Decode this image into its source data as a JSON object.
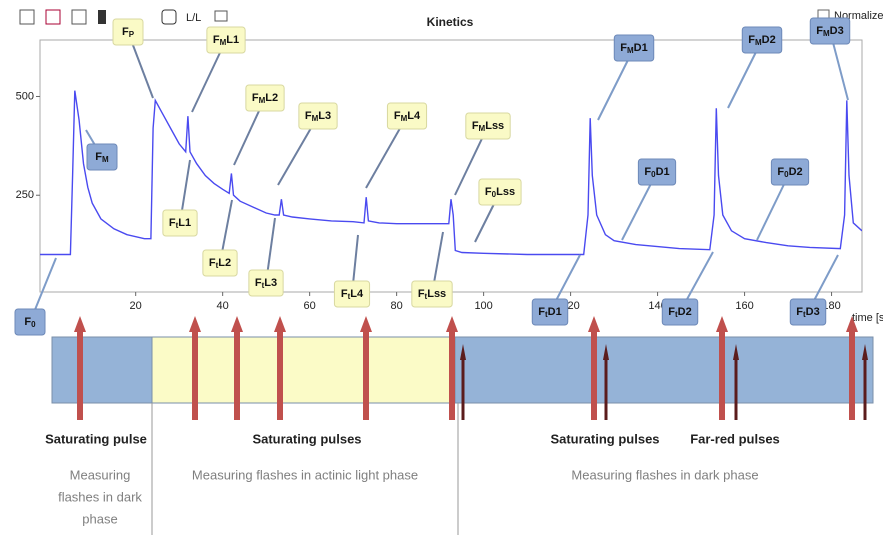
{
  "chart_data": {
    "type": "line",
    "title": "Kinetics",
    "x_label": "time [s",
    "x": [
      -2,
      5,
      5.5,
      6,
      7,
      8,
      9,
      10,
      12,
      15,
      18,
      22,
      23.5,
      24,
      24.5,
      26,
      28,
      30,
      31.5,
      32,
      32.5,
      34,
      36,
      38,
      40,
      41.5,
      42,
      42.5,
      44,
      47,
      50,
      52,
      53,
      53.5,
      54,
      56,
      60,
      65,
      70,
      72.5,
      73,
      73.5,
      76,
      80,
      85,
      92,
      92.5,
      93,
      93.5,
      95,
      100,
      110,
      123,
      124,
      124.5,
      125,
      126,
      128,
      130,
      135,
      140,
      145,
      152,
      153,
      153.5,
      154,
      155,
      157,
      160,
      165,
      170,
      175,
      182,
      183,
      183.5,
      184,
      185,
      187
    ],
    "series": [
      {
        "color": "#4a4af0",
        "values": [
          100,
          100,
          300,
          515,
          440,
          330,
          270,
          230,
          190,
          165,
          150,
          140,
          140,
          420,
          490,
          460,
          420,
          380,
          360,
          450,
          360,
          330,
          300,
          280,
          265,
          255,
          305,
          250,
          235,
          220,
          205,
          200,
          200,
          240,
          200,
          195,
          190,
          185,
          183,
          180,
          245,
          185,
          180,
          178,
          178,
          178,
          240,
          200,
          110,
          105,
          103,
          100,
          100,
          200,
          445,
          300,
          200,
          150,
          135,
          125,
          120,
          115,
          112,
          200,
          470,
          300,
          200,
          160,
          140,
          130,
          122,
          118,
          115,
          200,
          490,
          300,
          180,
          160
        ]
      }
    ],
    "xlim": [
      -2,
      187
    ],
    "ylim": [
      5,
      643
    ],
    "xticks": [
      20,
      40,
      60,
      80,
      100,
      120,
      140,
      160,
      180
    ],
    "yticks": [
      250,
      500
    ]
  },
  "toolbar": {
    "scale_button": "L/L",
    "normalize": "Normalize"
  },
  "annotations": [
    {
      "base": "F",
      "sub": "0",
      "rest": ""
    },
    {
      "base": "F",
      "sub": "M",
      "rest": ""
    },
    {
      "base": "F",
      "sub": "P",
      "rest": ""
    },
    {
      "base": "F",
      "sub": "M",
      "rest": "L1"
    },
    {
      "base": "F",
      "sub": "t",
      "rest": "L1"
    },
    {
      "base": "F",
      "sub": "M",
      "rest": "L2"
    },
    {
      "base": "F",
      "sub": "t",
      "rest": "L2"
    },
    {
      "base": "F",
      "sub": "M",
      "rest": "L3"
    },
    {
      "base": "F",
      "sub": "t",
      "rest": "L3"
    },
    {
      "base": "F",
      "sub": "M",
      "rest": "L4"
    },
    {
      "base": "F",
      "sub": "t",
      "rest": "L4"
    },
    {
      "base": "F",
      "sub": "M",
      "rest": "Lss"
    },
    {
      "base": "F",
      "sub": "0",
      "rest": "Lss"
    },
    {
      "base": "F",
      "sub": "t",
      "rest": "Lss"
    },
    {
      "base": "F",
      "sub": "M",
      "rest": "D1"
    },
    {
      "base": "F",
      "sub": "0",
      "rest": "D1"
    },
    {
      "base": "F",
      "sub": "t",
      "rest": "D1"
    },
    {
      "base": "F",
      "sub": "M",
      "rest": "D2"
    },
    {
      "base": "F",
      "sub": "0",
      "rest": "D2"
    },
    {
      "base": "F",
      "sub": "t",
      "rest": "D2"
    },
    {
      "base": "F",
      "sub": "M",
      "rest": "D3"
    },
    {
      "base": "F",
      "sub": "t",
      "rest": "D3"
    }
  ],
  "pulse_labels": [
    "Saturating pulse",
    "Saturating pulses",
    "Saturating pulses",
    "Far-red pulses"
  ],
  "phase_labels": [
    {
      "lines": [
        "Measuring",
        "flashes in dark",
        "phase"
      ]
    },
    {
      "lines": [
        "Measuring flashes in actinic light phase"
      ]
    },
    {
      "lines": [
        "Measuring flashes in dark phase"
      ]
    }
  ]
}
